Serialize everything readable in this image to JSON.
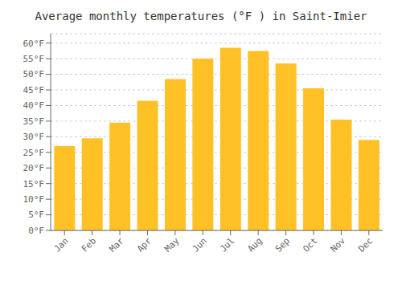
{
  "chart_data": {
    "type": "bar",
    "title": "Average monthly temperatures (°F ) in Saint-Imier",
    "categories": [
      "Jan",
      "Feb",
      "Mar",
      "Apr",
      "May",
      "Jun",
      "Jul",
      "Aug",
      "Sep",
      "Oct",
      "Nov",
      "Dec"
    ],
    "values": [
      27,
      29.5,
      34.5,
      41.5,
      48.5,
      55,
      58.5,
      57.5,
      53.5,
      45.5,
      35.5,
      29
    ],
    "color": "#FFC125",
    "ylim": [
      0,
      63
    ],
    "yticks": [
      {
        "value": 0,
        "label": "0°F"
      },
      {
        "value": 5,
        "label": "5°F"
      },
      {
        "value": 10,
        "label": "10°F"
      },
      {
        "value": 15,
        "label": "15°F"
      },
      {
        "value": 20,
        "label": "20°F"
      },
      {
        "value": 25,
        "label": "25°F"
      },
      {
        "value": 30,
        "label": "30°F"
      },
      {
        "value": 35,
        "label": "35°F"
      },
      {
        "value": 40,
        "label": "40°F"
      },
      {
        "value": 45,
        "label": "45°F"
      },
      {
        "value": 50,
        "label": "50°F"
      },
      {
        "value": 55,
        "label": "55°F"
      },
      {
        "value": 60,
        "label": "60°F"
      }
    ],
    "grid": true
  }
}
